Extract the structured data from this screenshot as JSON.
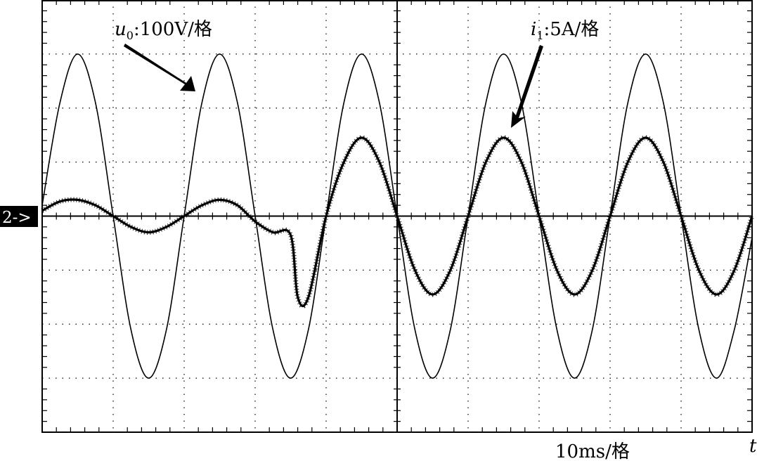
{
  "labels": {
    "ch1_prefix": "u",
    "ch1_sub": "0",
    "ch1_scale": ":100V/格",
    "ch2_prefix": "i",
    "ch2_sub": "1",
    "ch2_scale": ":5A/格",
    "ground_marker": "2->",
    "time_scale": "10ms/格",
    "time_axis": "t"
  },
  "chart_data": {
    "type": "line",
    "title": "",
    "xlabel": "t",
    "ylabel": "",
    "grid": true,
    "x_divisions": 10,
    "y_divisions": 8,
    "xlim": [
      0,
      100
    ],
    "ylim": [
      -4,
      4
    ],
    "x_unit": "ms",
    "x_scale_label": "10ms/格",
    "y_axis_labels": [
      "100V/格",
      "5A/格"
    ],
    "ground_marker": "2->",
    "series": [
      {
        "name": "u0",
        "scale": "100V/格",
        "style": "thin",
        "x": [
          0,
          2.5,
          5.0,
          7.5,
          10.0,
          12.5,
          15.0,
          17.5,
          20.0,
          22.5,
          25.0,
          27.5,
          30.0,
          32.5,
          35.0,
          37.5,
          40.0,
          42.5,
          45.0,
          47.5,
          50.0,
          52.5,
          55.0,
          57.5,
          60.0,
          62.5,
          65.0,
          67.5,
          70.0,
          72.5,
          75.0,
          77.5,
          80.0,
          82.5,
          85.0,
          87.5,
          90.0,
          92.5,
          95.0,
          97.5,
          100.0
        ],
        "y": [
          0.2,
          2.1,
          3.0,
          2.1,
          0.0,
          -2.1,
          -3.0,
          -2.1,
          0.0,
          2.1,
          3.0,
          2.1,
          0.0,
          -2.1,
          -3.0,
          -2.1,
          0.0,
          2.1,
          3.0,
          2.1,
          0.0,
          -2.1,
          -3.0,
          -2.1,
          0.0,
          2.1,
          3.0,
          2.1,
          0.0,
          -2.1,
          -3.0,
          -2.1,
          0.0,
          2.1,
          3.0,
          2.1,
          0.0,
          -2.1,
          -3.0,
          -2.1,
          -0.4
        ]
      },
      {
        "name": "i1",
        "scale": "5A/格",
        "style": "noisy",
        "x": [
          0,
          2.5,
          5.0,
          7.5,
          10.0,
          12.5,
          15.0,
          17.5,
          20.0,
          22.5,
          25.0,
          27.5,
          30.0,
          32.5,
          35.0,
          36.0,
          37.5,
          40.0,
          42.5,
          45.0,
          47.5,
          50.0,
          52.5,
          55.0,
          57.5,
          60.0,
          62.5,
          65.0,
          67.5,
          70.0,
          72.5,
          75.0,
          77.5,
          80.0,
          82.5,
          85.0,
          87.5,
          90.0,
          92.5,
          95.0,
          97.5,
          100.0
        ],
        "y": [
          0.1,
          0.27,
          0.3,
          0.2,
          0.0,
          -0.2,
          -0.3,
          -0.2,
          0.0,
          0.2,
          0.3,
          0.2,
          -0.1,
          -0.3,
          -0.35,
          -1.5,
          -1.5,
          0.0,
          1.0,
          1.45,
          1.0,
          0.0,
          -1.0,
          -1.45,
          -1.0,
          0.0,
          1.0,
          1.45,
          1.0,
          0.0,
          -1.0,
          -1.45,
          -1.0,
          0.0,
          1.0,
          1.45,
          1.0,
          0.0,
          -1.0,
          -1.45,
          -1.0,
          0.0
        ]
      }
    ]
  }
}
